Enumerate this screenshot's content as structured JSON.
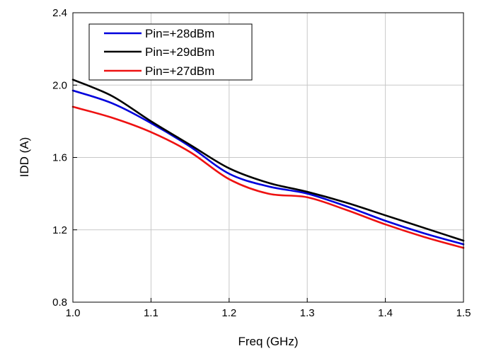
{
  "chart_data": {
    "type": "line",
    "xlabel": "Freq (GHz)",
    "ylabel": "IDD (A)",
    "xlim": [
      1.0,
      1.5
    ],
    "ylim": [
      0.8,
      2.4
    ],
    "xticks": [
      1.0,
      1.1,
      1.2,
      1.3,
      1.4,
      1.5
    ],
    "yticks": [
      0.8,
      1.2,
      1.6,
      2.0,
      2.4
    ],
    "xtick_labels": [
      "1.0",
      "1.1",
      "1.2",
      "1.3",
      "1.4",
      "1.5"
    ],
    "ytick_labels": [
      "0.8",
      "1.2",
      "1.6",
      "2.0",
      "2.4"
    ],
    "grid": true,
    "legend_position": "top-left",
    "x": [
      1.0,
      1.05,
      1.1,
      1.15,
      1.2,
      1.25,
      1.3,
      1.35,
      1.4,
      1.45,
      1.5
    ],
    "series": [
      {
        "name": "Pin=+28dBm",
        "color": "#0000dd",
        "values": [
          1.97,
          1.9,
          1.79,
          1.66,
          1.51,
          1.44,
          1.4,
          1.33,
          1.25,
          1.18,
          1.12
        ]
      },
      {
        "name": "Pin=+29dBm",
        "color": "#000000",
        "values": [
          2.03,
          1.94,
          1.8,
          1.67,
          1.54,
          1.46,
          1.41,
          1.35,
          1.28,
          1.21,
          1.14
        ]
      },
      {
        "name": "Pin=+27dBm",
        "color": "#ee1111",
        "values": [
          1.88,
          1.82,
          1.74,
          1.63,
          1.48,
          1.4,
          1.38,
          1.31,
          1.23,
          1.16,
          1.1
        ]
      }
    ]
  }
}
